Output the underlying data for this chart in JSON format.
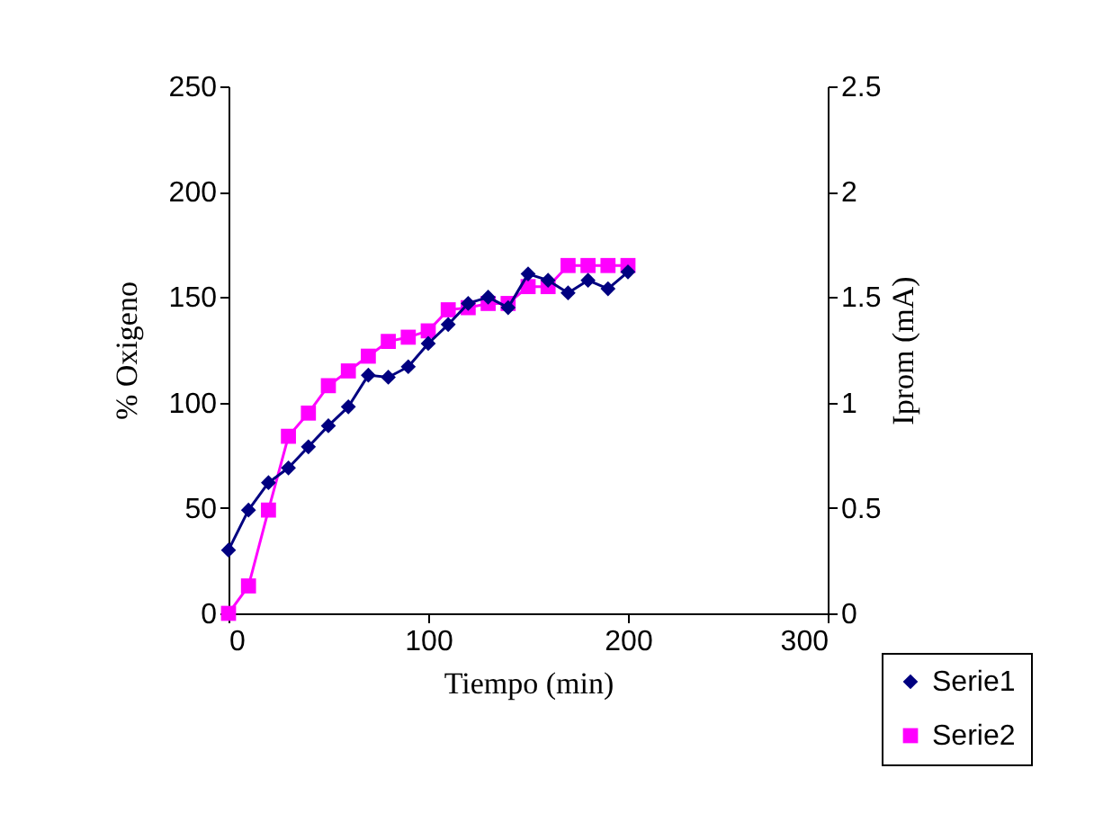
{
  "chart_data": {
    "type": "line",
    "x": [
      0,
      10,
      20,
      30,
      40,
      50,
      60,
      70,
      80,
      90,
      100,
      110,
      120,
      130,
      140,
      150,
      160,
      170,
      180,
      190,
      200
    ],
    "series": [
      {
        "name": "Serie1",
        "color": "#000080",
        "marker": "diamond",
        "values": [
          30,
          49,
          62,
          69,
          79,
          89,
          98,
          113,
          112,
          117,
          128,
          137,
          147,
          150,
          145,
          161,
          158,
          152,
          158,
          154,
          162
        ]
      },
      {
        "name": "Serie2",
        "color": "#ff00ff",
        "marker": "square",
        "axis": "y2",
        "values": [
          0,
          0.13,
          0.49,
          0.84,
          0.95,
          1.08,
          1.15,
          1.22,
          1.29,
          1.31,
          1.34,
          1.44,
          1.45,
          1.47,
          1.47,
          1.55,
          1.55,
          1.65,
          1.65,
          1.65,
          1.65
        ]
      }
    ],
    "xlabel": "Tiempo (min)",
    "ylabel": "% Oxigeno",
    "y2label": "Iprom (mA)",
    "xlim": [
      0,
      300
    ],
    "xticks": [
      0,
      100,
      200,
      300
    ],
    "ylim": [
      0,
      250
    ],
    "yticks": [
      0,
      50,
      100,
      150,
      200,
      250
    ],
    "y2lim": [
      0,
      2.5
    ],
    "y2ticks": [
      0,
      0.5,
      1,
      1.5,
      2,
      2.5
    ],
    "grid": false,
    "legend": "bottom right"
  }
}
